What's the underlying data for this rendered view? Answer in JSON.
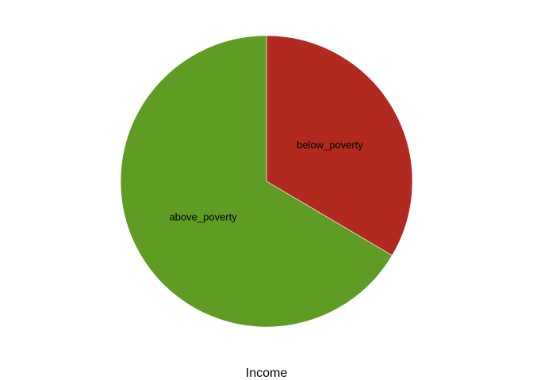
{
  "chart_data": {
    "type": "pie",
    "xlabel": "Income",
    "slices": [
      {
        "label": "below_poverty",
        "value": 0.335,
        "color": "#b22a1f"
      },
      {
        "label": "above_poverty",
        "value": 0.665,
        "color": "#5e9c24"
      }
    ],
    "start_angle_deg": 0,
    "direction": "clockwise"
  }
}
